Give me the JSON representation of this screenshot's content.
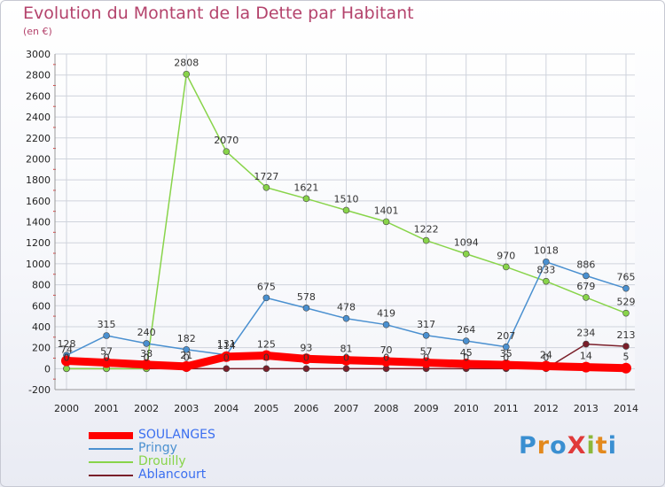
{
  "title": "Evolution du Montant de la Dette par Habitant",
  "subtitle": "(en €)",
  "logo_text": "ProXiti",
  "chart_data": {
    "type": "line",
    "title": "Evolution du Montant de la Dette par Habitant",
    "subtitle": "(en €)",
    "xlabel": "",
    "ylabel": "",
    "x": [
      "2000",
      "2001",
      "2002",
      "2003",
      "2004",
      "2005",
      "2006",
      "2007",
      "2008",
      "2009",
      "2010",
      "2011",
      "2012",
      "2013",
      "2014"
    ],
    "ylim": [
      -200,
      3000
    ],
    "yticks": [
      -200,
      0,
      200,
      400,
      600,
      800,
      1000,
      1200,
      1400,
      1600,
      1800,
      2000,
      2200,
      2400,
      2600,
      2800,
      3000
    ],
    "grid": true,
    "legend_position": "bottom-left",
    "series": [
      {
        "name": "SOULANGES",
        "color": "#ff0000",
        "values": [
          74,
          57,
          38,
          21,
          114,
          125,
          93,
          81,
          70,
          57,
          45,
          35,
          24,
          14,
          5
        ],
        "labels": [
          "74",
          "57",
          "38",
          "21",
          "114",
          "125",
          "93",
          "81",
          "70",
          "57",
          "45",
          "35",
          "24",
          "14",
          "5"
        ]
      },
      {
        "name": "Pringy",
        "color": "#4a90d0",
        "values": [
          128,
          315,
          240,
          182,
          131,
          675,
          578,
          478,
          419,
          317,
          264,
          207,
          1018,
          886,
          765
        ],
        "labels": [
          "128",
          "315",
          "240",
          "182",
          "131",
          "675",
          "578",
          "478",
          "419",
          "317",
          "264",
          "207",
          "1018",
          "886",
          "765"
        ]
      },
      {
        "name": "Drouilly",
        "color": "#88d44a",
        "values": [
          0,
          0,
          0,
          2808,
          2070,
          1727,
          1621,
          1510,
          1401,
          1222,
          1094,
          970,
          833,
          679,
          529
        ],
        "labels": [
          "0",
          "0",
          "0",
          "2808",
          "2070",
          "1727",
          "1621",
          "1510",
          "1401",
          "1222",
          "1094",
          "970",
          "833",
          "679",
          "529"
        ]
      },
      {
        "name": "Ablancourt",
        "color": "#7a1f2a",
        "values": [
          0,
          0,
          0,
          0,
          0,
          0,
          0,
          0,
          0,
          0,
          0,
          0,
          0,
          234,
          213
        ],
        "labels": [
          "0",
          "0",
          "0",
          "0",
          "0",
          "0",
          "0",
          "0",
          "0",
          "0",
          "0",
          "0",
          "0",
          "234",
          "213"
        ]
      }
    ]
  }
}
